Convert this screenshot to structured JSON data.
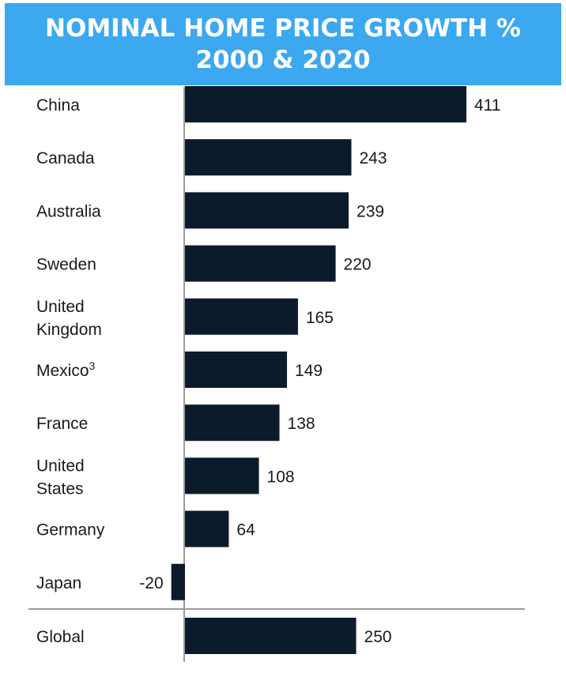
{
  "colors": {
    "header_bg": "#3ba8f0",
    "bar": "#0c1b2b"
  },
  "chart_data": {
    "type": "bar",
    "orientation": "horizontal",
    "title": "NOMINAL HOME PRICE GROWTH %",
    "subtitle": "2000 & 2020",
    "categories": [
      [
        "China"
      ],
      [
        "Canada"
      ],
      [
        "Australia"
      ],
      [
        "Sweden"
      ],
      [
        "United",
        "Kingdom"
      ],
      [
        "Mexico"
      ],
      [
        "France"
      ],
      [
        "United",
        "States"
      ],
      [
        "Germany"
      ],
      [
        "Japan"
      ],
      [
        "Global"
      ]
    ],
    "footnotes": {
      "Mexico": "3"
    },
    "values": [
      411,
      243,
      239,
      220,
      165,
      149,
      138,
      108,
      64,
      -20,
      250
    ],
    "xlabel": "",
    "ylabel": "",
    "xlim": [
      -20,
      411
    ],
    "grid": false,
    "data_labels": true
  }
}
